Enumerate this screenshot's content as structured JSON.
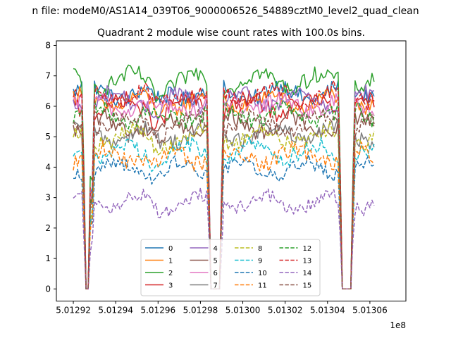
{
  "chart_data": {
    "type": "line",
    "suptitle": "n file: modeM0/AS1A14_039T06_9000006526_54889cztM0_level2_quad_clean",
    "title": "Quadrant 2 module wise count rates with 100.0s bins.",
    "xlabel": "",
    "ylabel": "",
    "x_offset_label": "1e8",
    "xlim": [
      5.012912,
      5.013077
    ],
    "ylim": [
      -0.4,
      8.15
    ],
    "x_ticks": [
      5.01292,
      5.01294,
      5.01296,
      5.01298,
      5.013,
      5.01302,
      5.01304,
      5.01306
    ],
    "x_tick_labels": [
      "5.01292",
      "5.01294",
      "5.01296",
      "5.01298",
      "5.01300",
      "5.01302",
      "5.01304",
      "5.01306"
    ],
    "y_ticks": [
      0,
      1,
      2,
      3,
      4,
      5,
      6,
      7,
      8
    ],
    "y_tick_labels": [
      "0",
      "1",
      "2",
      "3",
      "4",
      "5",
      "6",
      "7",
      "8"
    ],
    "x_start": 5.01292,
    "bin_width": 1e-06,
    "n_bins": 143,
    "gaps": [
      {
        "start": 5.012926,
        "end": 5.012928
      },
      {
        "start": 5.012985,
        "end": 5.012989
      },
      {
        "start": 5.013047,
        "end": 5.013051
      }
    ],
    "legend": {
      "position": "lower-center",
      "columns": 4
    },
    "series": [
      {
        "name": "0",
        "level": 6.45,
        "color": "#1f77b4",
        "dash": "solid"
      },
      {
        "name": "1",
        "level": 6.15,
        "color": "#ff7f0e",
        "dash": "solid"
      },
      {
        "name": "2",
        "level": 6.85,
        "color": "#2ca02c",
        "dash": "solid"
      },
      {
        "name": "3",
        "level": 6.0,
        "color": "#d62728",
        "dash": "solid"
      },
      {
        "name": "4",
        "level": 6.2,
        "color": "#9467bd",
        "dash": "solid"
      },
      {
        "name": "5",
        "level": 5.4,
        "color": "#8c564b",
        "dash": "solid"
      },
      {
        "name": "6",
        "level": 6.05,
        "color": "#e377c2",
        "dash": "solid"
      },
      {
        "name": "7",
        "level": 5.1,
        "color": "#7f7f7f",
        "dash": "solid"
      },
      {
        "name": "8",
        "level": 5.0,
        "color": "#bcbd22",
        "dash": "dashed"
      },
      {
        "name": "9",
        "level": 4.5,
        "color": "#17becf",
        "dash": "dashed"
      },
      {
        "name": "10",
        "level": 3.95,
        "color": "#1f77b4",
        "dash": "dashed"
      },
      {
        "name": "11",
        "level": 4.35,
        "color": "#ff7f0e",
        "dash": "dashed"
      },
      {
        "name": "12",
        "level": 5.75,
        "color": "#2ca02c",
        "dash": "dashed"
      },
      {
        "name": "13",
        "level": 6.35,
        "color": "#d62728",
        "dash": "dashed"
      },
      {
        "name": "14",
        "level": 2.85,
        "color": "#9467bd",
        "dash": "dashed"
      },
      {
        "name": "15",
        "level": 5.45,
        "color": "#8c564b",
        "dash": "dashed"
      }
    ]
  }
}
